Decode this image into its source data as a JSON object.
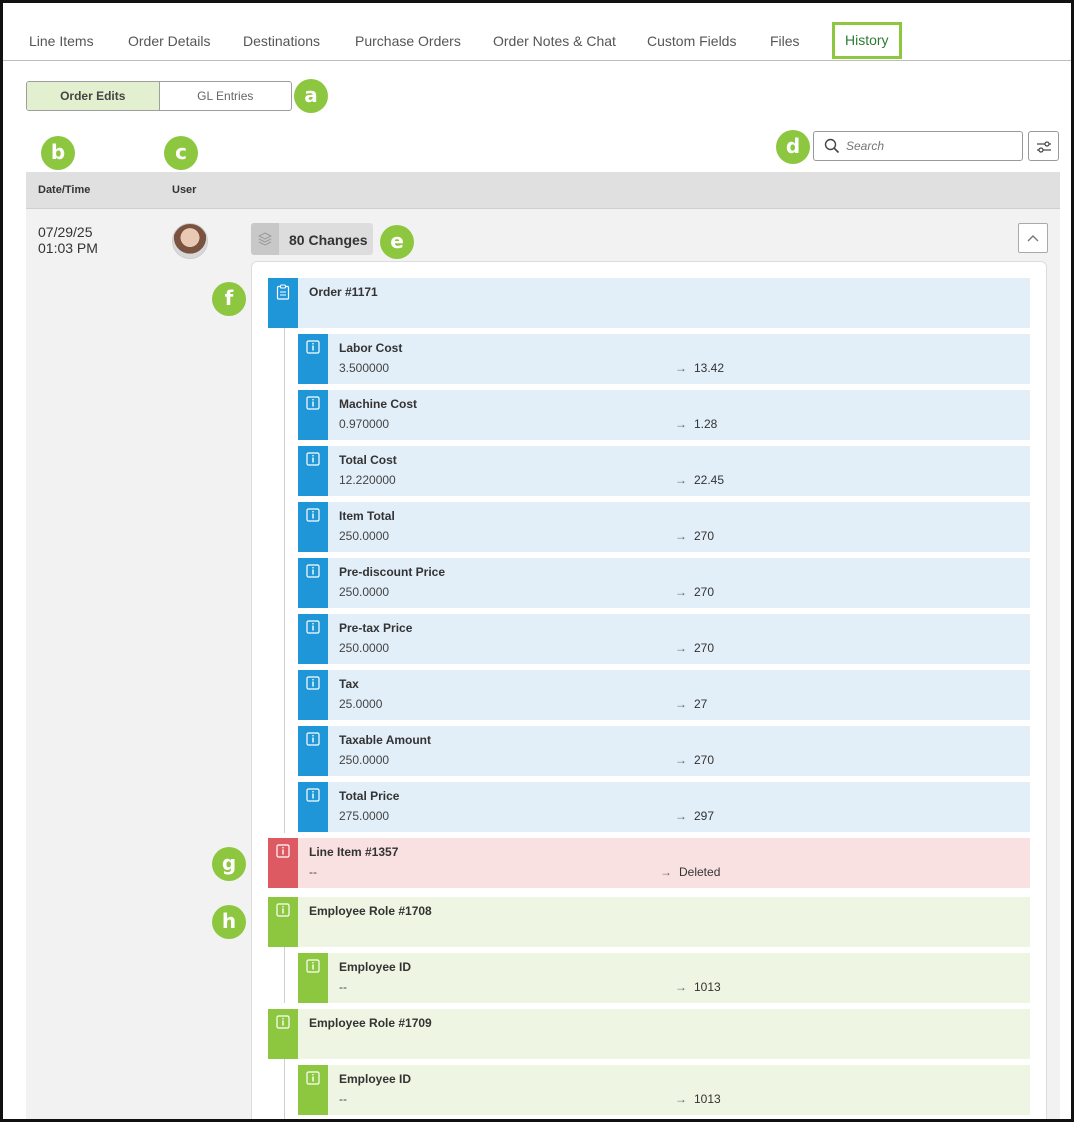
{
  "tabs": [
    "Line Items",
    "Order Details",
    "Destinations",
    "Purchase Orders",
    "Order Notes & Chat",
    "Custom Fields",
    "Files",
    "History"
  ],
  "segmented": {
    "order_edits": "Order Edits",
    "gl_entries": "GL Entries"
  },
  "callouts": {
    "a": "a",
    "b": "b",
    "c": "c",
    "d": "d",
    "e": "e",
    "f": "f",
    "g": "g",
    "h": "h"
  },
  "search": {
    "placeholder": "Search"
  },
  "table": {
    "col_datetime": "Date/Time",
    "col_user": "User"
  },
  "entry": {
    "date": "07/29/25",
    "time": "01:03 PM",
    "changes_label": "80 Changes",
    "order": {
      "title": "Order #1171"
    },
    "order_fields": [
      {
        "title": "Labor Cost",
        "old": "3.500000",
        "arrow": "→",
        "new": "13.42"
      },
      {
        "title": "Machine Cost",
        "old": "0.970000",
        "arrow": "→",
        "new": "1.28"
      },
      {
        "title": "Total Cost",
        "old": "12.220000",
        "arrow": "→",
        "new": "22.45"
      },
      {
        "title": "Item Total",
        "old": "250.0000",
        "arrow": "→",
        "new": "270"
      },
      {
        "title": "Pre-discount Price",
        "old": "250.0000",
        "arrow": "→",
        "new": "270"
      },
      {
        "title": "Pre-tax Price",
        "old": "250.0000",
        "arrow": "→",
        "new": "270"
      },
      {
        "title": "Tax",
        "old": "25.0000",
        "arrow": "→",
        "new": "27"
      },
      {
        "title": "Taxable Amount",
        "old": "250.0000",
        "arrow": "→",
        "new": "270"
      },
      {
        "title": "Total Price",
        "old": "275.0000",
        "arrow": "→",
        "new": "297"
      }
    ],
    "line_item": {
      "title": "Line Item #1357",
      "old": "--",
      "arrow": "→",
      "new": "Deleted"
    },
    "role1": {
      "title": "Employee Role #1708"
    },
    "role1_field": {
      "title": "Employee ID",
      "old": "--",
      "arrow": "→",
      "new": "1013"
    },
    "role2": {
      "title": "Employee Role #1709"
    },
    "role2_field": {
      "title": "Employee ID",
      "old": "--",
      "arrow": "→",
      "new": "1013"
    }
  },
  "colors": {
    "accent_green": "#8dc63f",
    "blue": "#1e96d8",
    "red": "#de5a63"
  }
}
